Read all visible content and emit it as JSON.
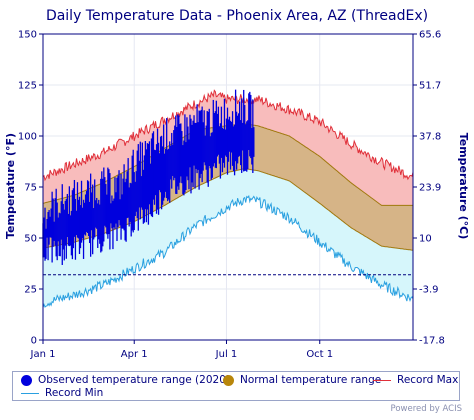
{
  "chart_data": {
    "type": "area",
    "title": "Daily Temperature Data - Phoenix Area, AZ (ThreadEx)",
    "ylabel_left": "Temperature (°F)",
    "ylabel_right": "Temperature (°C)",
    "ylim": [
      0,
      150
    ],
    "yticks_left": [
      "0",
      "25",
      "50",
      "75",
      "100",
      "125",
      "150"
    ],
    "yticks_right": [
      "-17.8",
      "-3.9",
      "10",
      "23.9",
      "37.8",
      "51.7",
      "65.6"
    ],
    "xticks": [
      "Jan 1",
      "Apr 1",
      "Jul 1",
      "Oct 1"
    ],
    "xtick_days": [
      1,
      91,
      182,
      274
    ],
    "days_in_year": 366,
    "freeze_line_f": 32,
    "series": [
      {
        "name": "Record Max",
        "x": [
          1,
          31,
          61,
          91,
          121,
          152,
          170,
          182,
          213,
          244,
          274,
          305,
          335,
          366
        ],
        "values": [
          80,
          86,
          92,
          100,
          108,
          116,
          120,
          118,
          118,
          113,
          107,
          96,
          87,
          80
        ]
      },
      {
        "name": "Record Min",
        "x": [
          1,
          31,
          61,
          91,
          121,
          152,
          182,
          200,
          213,
          244,
          274,
          305,
          335,
          366
        ],
        "values": [
          18,
          22,
          27,
          35,
          43,
          56,
          65,
          69,
          68,
          60,
          48,
          36,
          27,
          20
        ]
      },
      {
        "name": "Normal High",
        "x": [
          1,
          32,
          60,
          91,
          121,
          152,
          182,
          200,
          213,
          244,
          274,
          305,
          335,
          366
        ],
        "values": [
          67,
          71,
          77,
          85,
          94,
          103,
          105,
          106,
          105,
          100,
          90,
          77,
          66,
          66
        ]
      },
      {
        "name": "Normal Low",
        "x": [
          1,
          32,
          60,
          91,
          121,
          152,
          182,
          200,
          213,
          244,
          274,
          305,
          335,
          366
        ],
        "values": [
          45,
          48,
          52,
          58,
          66,
          75,
          82,
          84,
          83,
          78,
          67,
          55,
          46,
          44
        ]
      }
    ],
    "observed": {
      "name": "Observed temperature range (2020)",
      "x": [
        1,
        15,
        30,
        45,
        60,
        75,
        91,
        105,
        121,
        135,
        152,
        165,
        182,
        195,
        209
      ],
      "highs": [
        62,
        67,
        70,
        72,
        76,
        75,
        86,
        92,
        100,
        102,
        107,
        108,
        112,
        115,
        112
      ],
      "lows": [
        44,
        43,
        45,
        47,
        50,
        52,
        58,
        62,
        72,
        76,
        80,
        82,
        86,
        88,
        86
      ]
    },
    "colors": {
      "record_max": "#e0303a",
      "record_min": "#2aa0e0",
      "normal": "#b8860b",
      "observed": "#0000dd",
      "axis_text": "#000080"
    }
  },
  "legend": {
    "observed": "Observed temperature range (2020)",
    "normal": "Normal temperature range",
    "record_max": "Record Max",
    "record_min": "Record Min"
  },
  "footer": "Powered by ACIS"
}
